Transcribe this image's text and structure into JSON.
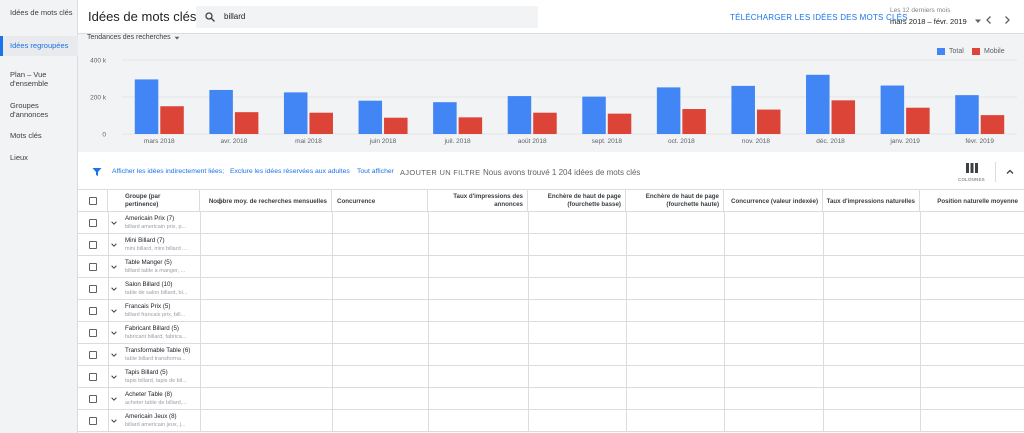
{
  "sidebar": {
    "items": [
      {
        "label": "Idées de mots clés",
        "active": false
      },
      {
        "label": "Idées regroupées",
        "active": true
      },
      {
        "label": "Plan – Vue d'ensemble",
        "active": false
      },
      {
        "label": "Groupes d'annonces",
        "active": false
      },
      {
        "label": "Mots clés",
        "active": false
      },
      {
        "label": "Lieux",
        "active": false
      }
    ]
  },
  "header": {
    "title": "Idées de mots clés",
    "search_value": "billard",
    "download_label": "TÉLÉCHARGER LES IDÉES DES MOTS CLÉS",
    "date_caption": "Les 12 derniers mois",
    "date_range": "mars 2018 – févr. 2019"
  },
  "chart": {
    "dropdown_label": "Tendances des recherches",
    "legend_total": "Total",
    "legend_mobile": "Mobile"
  },
  "chart_data": {
    "type": "bar",
    "categories": [
      "mars 2018",
      "avr. 2018",
      "mai 2018",
      "juin 2018",
      "juil. 2018",
      "août 2018",
      "sept. 2018",
      "oct. 2018",
      "nov. 2018",
      "déc. 2018",
      "janv. 2019",
      "févr. 2019"
    ],
    "series": [
      {
        "name": "Total",
        "color": "#4285f4",
        "values": [
          295000,
          238000,
          225000,
          180000,
          172000,
          205000,
          202000,
          252000,
          260000,
          320000,
          262000,
          210000
        ]
      },
      {
        "name": "Mobile",
        "color": "#db4437",
        "values": [
          150000,
          118000,
          115000,
          88000,
          90000,
          115000,
          110000,
          135000,
          132000,
          182000,
          142000,
          102000
        ]
      }
    ],
    "yticks": [
      "0",
      "200 k",
      "400 k"
    ],
    "ylim": [
      0,
      400000
    ],
    "xlabel": "",
    "ylabel": ""
  },
  "toolbar": {
    "link_indirect": "Afficher les idées indirectement liées;",
    "link_adult": "Exclure les idées réservées aux adultes",
    "link_all": "Tout afficher",
    "add_filter": "AJOUTER UN FILTRE",
    "found_text": "Nous avons trouvé 1 204 idées de mots clés",
    "columns_label": "COLONNES"
  },
  "table": {
    "headers": {
      "group": "Groupe (par pertinence)",
      "avg_searches": "Nombre moy. de recherches mensuelles",
      "competition": "Concurrence",
      "impr_share_ads": "Taux d'impressions des annonces",
      "bid_low": "Enchère de haut de page (fourchette basse)",
      "bid_high": "Enchère de haut de page (fourchette haute)",
      "competition_idx": "Concurrence (valeur indexée)",
      "organic_impr": "Taux d'impressions naturelles",
      "organic_pos": "Position naturelle moyenne"
    },
    "rows": [
      {
        "name": "Americain Prix (7)",
        "sub": "billard americain prix, p..."
      },
      {
        "name": "Mini Billard (7)",
        "sub": "mini billard, mini billard ..."
      },
      {
        "name": "Table Manger (5)",
        "sub": "billard table a manger, ..."
      },
      {
        "name": "Salon Billard (10)",
        "sub": "table de salon billard, bi..."
      },
      {
        "name": "Francais Prix (5)",
        "sub": "billard francais prix, bill..."
      },
      {
        "name": "Fabricant Billard (5)",
        "sub": "fabricant billard, fabrica..."
      },
      {
        "name": "Transformable Table (6)",
        "sub": "table billard transforma..."
      },
      {
        "name": "Tapis Billard (5)",
        "sub": "tapis billard, tapis de bil..."
      },
      {
        "name": "Acheter Table (8)",
        "sub": "acheter table de billard,..."
      },
      {
        "name": "Americain Jeux (8)",
        "sub": "billard americain jeux, j..."
      }
    ]
  }
}
